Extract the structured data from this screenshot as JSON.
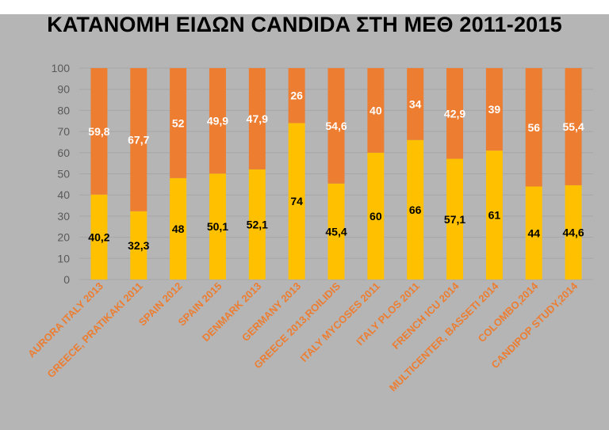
{
  "colors": {
    "background": "#b5b5b5",
    "bottom_series": "#ffc000",
    "top_series": "#ed7d31",
    "gridline": "#a6a6a6",
    "category_label": "#ed7d31",
    "bottom_value_label": "#000000",
    "top_value_label": "#ffffff"
  },
  "chart_data": {
    "type": "bar",
    "stacked": true,
    "title": "ΚΑΤΑΝΟΜΗ ΕΙΔΩΝ CANDIDA ΣΤΗ ΜΕΘ 2011-2015",
    "xlabel": "",
    "ylabel": "",
    "ylim": [
      0,
      100
    ],
    "yticks": [
      0,
      10,
      20,
      30,
      40,
      50,
      60,
      70,
      80,
      90,
      100
    ],
    "grid": true,
    "legend": "none",
    "categories": [
      "AURORA ITALY 2013",
      "GREECE, PRATIKAKI 2011",
      "SPAIN 2012",
      "SPAIN 2015",
      "DENMARK 2013",
      "GERMANY 2013",
      "GREECE 2013,ROILIDIS",
      "ITALY MYCOSES 2011",
      "ITALY PLOS 2011",
      "FRENCH ICU 2014",
      "MULTICENTER, BASSETI 2014",
      "COLOMBO,2014",
      "CANDIPOP STUDY,2014"
    ],
    "series": [
      {
        "values": [
          40.2,
          32.3,
          48,
          50.1,
          52.1,
          74,
          45.4,
          60,
          66,
          57.1,
          61,
          44,
          44.6
        ],
        "labels": [
          "40,2",
          "32,3",
          "48",
          "50,1",
          "52,1",
          "74",
          "45,4",
          "60",
          "66",
          "57,1",
          "61",
          "44",
          "44,6"
        ]
      },
      {
        "values": [
          59.8,
          67.7,
          52,
          49.9,
          47.9,
          26,
          54.6,
          40,
          34,
          42.9,
          39,
          56,
          55.4
        ],
        "labels": [
          "59,8",
          "67,7",
          "52",
          "49,9",
          "47,9",
          "26",
          "54,6",
          "40",
          "34",
          "42,9",
          "39",
          "56",
          "55,4"
        ]
      }
    ]
  }
}
